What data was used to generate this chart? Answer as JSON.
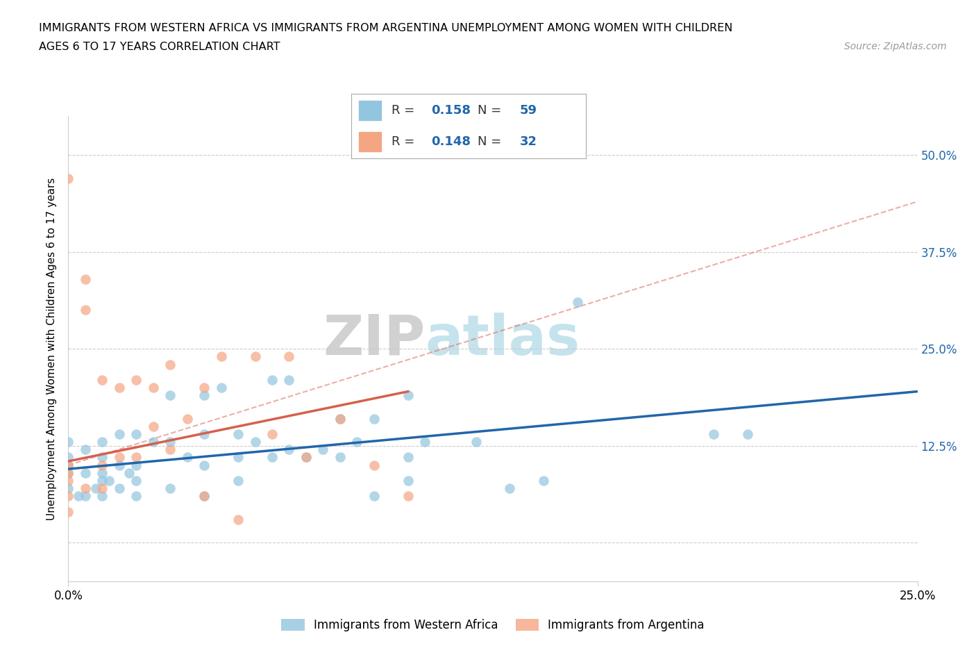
{
  "title_line1": "IMMIGRANTS FROM WESTERN AFRICA VS IMMIGRANTS FROM ARGENTINA UNEMPLOYMENT AMONG WOMEN WITH CHILDREN",
  "title_line2": "AGES 6 TO 17 YEARS CORRELATION CHART",
  "source": "Source: ZipAtlas.com",
  "ylabel": "Unemployment Among Women with Children Ages 6 to 17 years",
  "xlim": [
    0.0,
    0.25
  ],
  "ylim": [
    -0.05,
    0.55
  ],
  "ytick_labels": [
    "",
    "12.5%",
    "25.0%",
    "37.5%",
    "50.0%"
  ],
  "ytick_positions": [
    0.0,
    0.125,
    0.25,
    0.375,
    0.5
  ],
  "grid_color": "#cccccc",
  "watermark_zip": "ZIP",
  "watermark_atlas": "atlas",
  "blue_color": "#92c5de",
  "pink_color": "#f4a582",
  "blue_line_color": "#2166ac",
  "pink_line_color": "#d6604d",
  "dashed_line_color": "#d6604d",
  "R_blue": 0.158,
  "N_blue": 59,
  "R_pink": 0.148,
  "N_pink": 32,
  "blue_scatter_x": [
    0.0,
    0.0,
    0.0,
    0.0,
    0.0,
    0.003,
    0.005,
    0.005,
    0.005,
    0.008,
    0.01,
    0.01,
    0.01,
    0.01,
    0.01,
    0.012,
    0.015,
    0.015,
    0.015,
    0.018,
    0.02,
    0.02,
    0.02,
    0.02,
    0.025,
    0.03,
    0.03,
    0.03,
    0.035,
    0.04,
    0.04,
    0.04,
    0.04,
    0.045,
    0.05,
    0.05,
    0.05,
    0.055,
    0.06,
    0.06,
    0.065,
    0.065,
    0.07,
    0.075,
    0.08,
    0.08,
    0.085,
    0.09,
    0.09,
    0.1,
    0.1,
    0.1,
    0.105,
    0.12,
    0.13,
    0.14,
    0.15,
    0.19,
    0.2
  ],
  "blue_scatter_y": [
    0.07,
    0.09,
    0.1,
    0.11,
    0.13,
    0.06,
    0.06,
    0.09,
    0.12,
    0.07,
    0.06,
    0.08,
    0.09,
    0.11,
    0.13,
    0.08,
    0.07,
    0.1,
    0.14,
    0.09,
    0.06,
    0.08,
    0.1,
    0.14,
    0.13,
    0.07,
    0.13,
    0.19,
    0.11,
    0.06,
    0.1,
    0.14,
    0.19,
    0.2,
    0.08,
    0.11,
    0.14,
    0.13,
    0.11,
    0.21,
    0.12,
    0.21,
    0.11,
    0.12,
    0.11,
    0.16,
    0.13,
    0.06,
    0.16,
    0.08,
    0.11,
    0.19,
    0.13,
    0.13,
    0.07,
    0.08,
    0.31,
    0.14,
    0.14
  ],
  "pink_scatter_x": [
    0.0,
    0.0,
    0.0,
    0.0,
    0.0,
    0.0,
    0.005,
    0.005,
    0.005,
    0.01,
    0.01,
    0.01,
    0.015,
    0.015,
    0.02,
    0.02,
    0.025,
    0.025,
    0.03,
    0.03,
    0.035,
    0.04,
    0.04,
    0.045,
    0.05,
    0.055,
    0.06,
    0.065,
    0.07,
    0.08,
    0.09,
    0.1
  ],
  "pink_scatter_y": [
    0.04,
    0.06,
    0.08,
    0.09,
    0.1,
    0.47,
    0.07,
    0.3,
    0.34,
    0.07,
    0.1,
    0.21,
    0.11,
    0.2,
    0.11,
    0.21,
    0.15,
    0.2,
    0.12,
    0.23,
    0.16,
    0.06,
    0.2,
    0.24,
    0.03,
    0.24,
    0.14,
    0.24,
    0.11,
    0.16,
    0.1,
    0.06
  ],
  "blue_trend_x0": 0.0,
  "blue_trend_x1": 0.25,
  "blue_trend_y0": 0.095,
  "blue_trend_y1": 0.195,
  "pink_trend_x0": 0.0,
  "pink_trend_x1": 0.1,
  "pink_trend_y0": 0.105,
  "pink_trend_y1": 0.195,
  "dashed_trend_x0": 0.0,
  "dashed_trend_x1": 0.25,
  "dashed_trend_y0": 0.1,
  "dashed_trend_y1": 0.44,
  "legend_label_blue": "Immigrants from Western Africa",
  "legend_label_pink": "Immigrants from Argentina"
}
